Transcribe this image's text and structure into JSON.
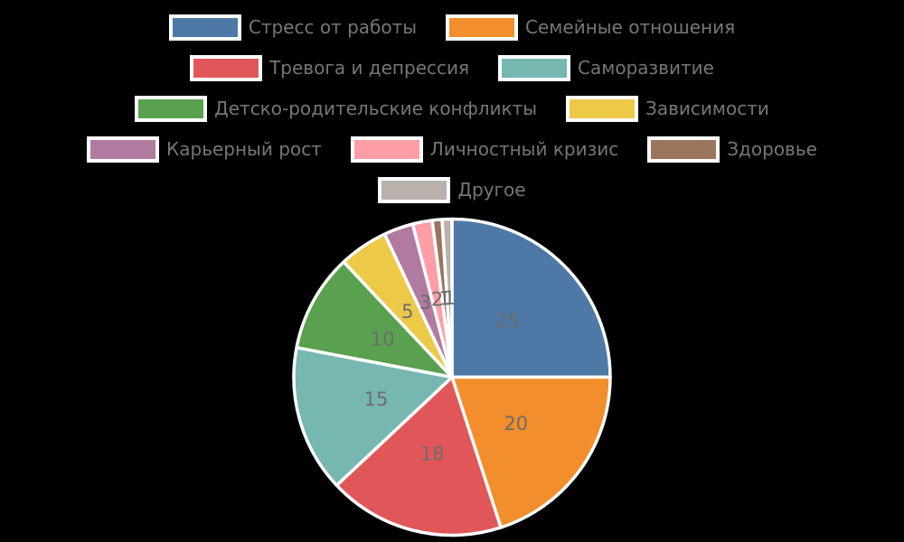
{
  "background_color": "#000000",
  "legend": {
    "rows": [
      [
        0,
        1
      ],
      [
        2,
        3
      ],
      [
        4,
        5
      ],
      [
        6,
        7,
        8
      ],
      [
        9
      ]
    ],
    "text_color": "#767676",
    "swatch_border_color": "#ffffff",
    "position": "top-center"
  },
  "chart_data": {
    "type": "pie",
    "title": "",
    "categories": [
      "Стресс от работы",
      "Семейные отношения",
      "Тревога и депрессия",
      "Саморазвитие",
      "Детско-родительские конфликты",
      "Зависимости",
      "Карьерный рост",
      "Личностный кризис",
      "Здоровье",
      "Другое"
    ],
    "values": [
      25,
      20,
      18,
      15,
      10,
      5,
      3,
      2,
      1,
      1
    ],
    "colors": [
      "#4E79A7",
      "#F28E2B",
      "#E15759",
      "#76B7B2",
      "#59A14F",
      "#EDC948",
      "#B07AA1",
      "#FF9DA7",
      "#9C755F",
      "#BAB0AC"
    ],
    "data_label_values": [
      "25",
      "20",
      "18",
      "15",
      "10",
      "5",
      "3",
      "2",
      "1",
      "1"
    ],
    "data_label_color": "#6d6d6d",
    "wedge_edge_color": "#ffffff",
    "start": "top",
    "direction": "clockwise",
    "pct_distance": 0.5,
    "legend_position": "top"
  }
}
